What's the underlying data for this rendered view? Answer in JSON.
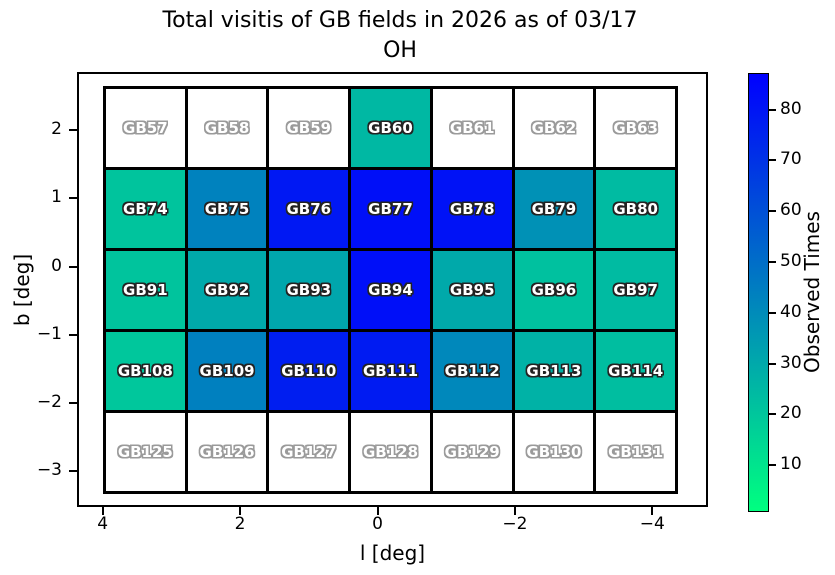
{
  "chart_data": {
    "type": "heatmap",
    "title_line1": "Total visitis of GB fields in 2026 as of 03/17",
    "title_line2": "OH",
    "xlabel": "l [deg]",
    "ylabel": "b [deg]",
    "colormap": "winter_r",
    "color_low": "#00ff80",
    "color_high": "#0000ff",
    "empty_cell_color": "#ffffff",
    "x_ticks": [
      {
        "label": "4",
        "value": 4
      },
      {
        "label": "2",
        "value": 2
      },
      {
        "label": "0",
        "value": 0
      },
      {
        "label": "−2",
        "value": -2
      },
      {
        "label": "−4",
        "value": -4
      }
    ],
    "y_ticks": [
      {
        "label": "2",
        "value": 2
      },
      {
        "label": "1",
        "value": 1
      },
      {
        "label": "0",
        "value": 0
      },
      {
        "label": "−1",
        "value": -1
      },
      {
        "label": "−2",
        "value": -2
      },
      {
        "label": "−3",
        "value": -3
      }
    ],
    "colorbar": {
      "label": "Observed Times",
      "ticks": [
        10,
        20,
        30,
        40,
        50,
        60,
        70,
        80
      ],
      "vmin": 1,
      "vmax": 87
    },
    "rows": [
      {
        "fields": [
          {
            "label": "GB57",
            "value": null
          },
          {
            "label": "GB58",
            "value": null
          },
          {
            "label": "GB59",
            "value": null
          },
          {
            "label": "GB60",
            "value": 25
          },
          {
            "label": "GB61",
            "value": null
          },
          {
            "label": "GB62",
            "value": null
          },
          {
            "label": "GB63",
            "value": null
          }
        ]
      },
      {
        "fields": [
          {
            "label": "GB74",
            "value": 21
          },
          {
            "label": "GB75",
            "value": 43
          },
          {
            "label": "GB76",
            "value": 79
          },
          {
            "label": "GB77",
            "value": 82
          },
          {
            "label": "GB78",
            "value": 81
          },
          {
            "label": "GB79",
            "value": 38
          },
          {
            "label": "GB80",
            "value": 24
          }
        ]
      },
      {
        "fields": [
          {
            "label": "GB91",
            "value": 21
          },
          {
            "label": "GB92",
            "value": 30
          },
          {
            "label": "GB93",
            "value": 31
          },
          {
            "label": "GB94",
            "value": 82
          },
          {
            "label": "GB95",
            "value": 30
          },
          {
            "label": "GB96",
            "value": 22
          },
          {
            "label": "GB97",
            "value": 24
          }
        ]
      },
      {
        "fields": [
          {
            "label": "GB108",
            "value": 20
          },
          {
            "label": "GB109",
            "value": 44
          },
          {
            "label": "GB110",
            "value": 77
          },
          {
            "label": "GB111",
            "value": 78
          },
          {
            "label": "GB112",
            "value": 41
          },
          {
            "label": "GB113",
            "value": 27
          },
          {
            "label": "GB114",
            "value": 23
          }
        ]
      },
      {
        "fields": [
          {
            "label": "GB125",
            "value": null
          },
          {
            "label": "GB126",
            "value": null
          },
          {
            "label": "GB127",
            "value": null
          },
          {
            "label": "GB128",
            "value": null
          },
          {
            "label": "GB129",
            "value": null
          },
          {
            "label": "GB130",
            "value": null
          },
          {
            "label": "GB131",
            "value": null
          }
        ]
      }
    ]
  }
}
